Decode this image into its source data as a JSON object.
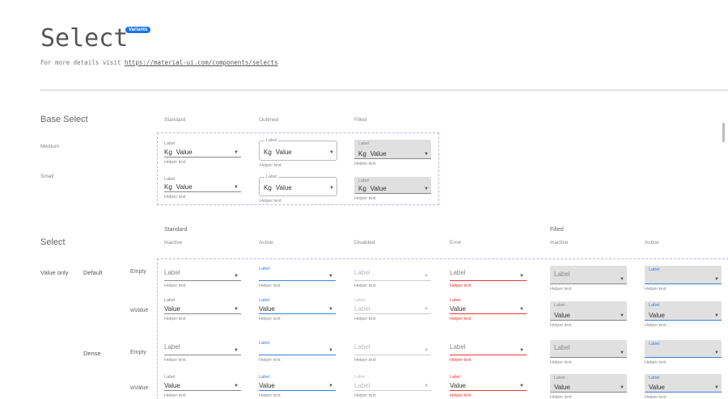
{
  "header": {
    "title": "Select",
    "badge": "Variants",
    "subtitle_prefix": "For more details visit ",
    "subtitle_link": "https://material-ui.com/components/selects"
  },
  "colors": {
    "accent": "#1a73e8",
    "active": "#3f7fe0",
    "error": "#e53935",
    "filled_bg": "#e0e0e0"
  },
  "base": {
    "title": "Base Select",
    "columns": [
      "Standard",
      "Outlined",
      "Filled"
    ],
    "rows": [
      {
        "label": "Medium"
      },
      {
        "label": "Small"
      }
    ],
    "field": {
      "label": "Label",
      "prefix": "Kg",
      "value": "Value",
      "helper": "Helper text"
    }
  },
  "grid": {
    "title": "Select",
    "groups": [
      "Standard",
      "Filled"
    ],
    "columns": [
      "Inactive",
      "Active",
      "Disabled",
      "Error",
      "Inactive",
      "Active"
    ],
    "row_group": "Value only",
    "densities": [
      "Default",
      "Dense"
    ],
    "states": [
      "Empty",
      "wValue",
      "Empty",
      "wValue"
    ],
    "field": {
      "label": "Label",
      "value": "Value",
      "helper": "Helper text"
    }
  },
  "icons": {
    "dropdown": "caret-down-icon"
  }
}
